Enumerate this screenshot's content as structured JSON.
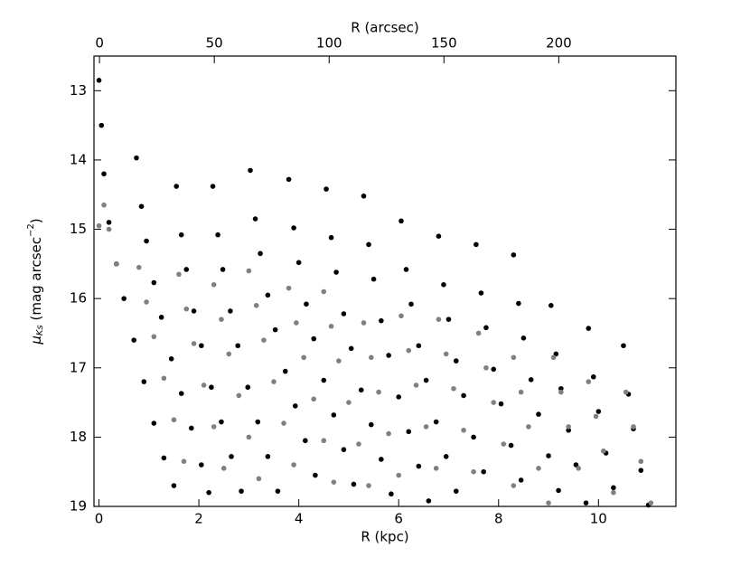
{
  "chart_data": {
    "type": "scatter",
    "xlabel": "R (kpc)",
    "x2label": "R (arcsec)",
    "ylabel": [
      "μ",
      "Ks",
      " (mag arcsec",
      "−2",
      ")"
    ],
    "xlim": [
      -0.1,
      11.55
    ],
    "xticks": [
      0,
      2,
      4,
      6,
      8,
      10
    ],
    "x2lim": [
      -2.4,
      251
    ],
    "x2ticks": [
      0,
      50,
      100,
      150,
      200
    ],
    "ylim": [
      19,
      12.5
    ],
    "yticks": [
      13,
      14,
      15,
      16,
      17,
      18,
      19
    ],
    "series": [
      {
        "color": "#000000",
        "x": [
          0,
          0.05,
          0.1,
          0.2,
          0.35,
          0.5,
          0.7,
          0.9,
          1.1,
          1.3,
          1.5,
          0.75,
          0.85,
          0.95,
          1.1,
          1.25,
          1.45,
          1.65,
          1.85,
          2.05,
          2.2,
          1.55,
          1.65,
          1.75,
          1.9,
          2.05,
          2.25,
          2.45,
          2.65,
          2.85,
          2.28,
          2.38,
          2.48,
          2.63,
          2.78,
          2.98,
          3.18,
          3.38,
          3.58,
          3.03,
          3.13,
          3.23,
          3.38,
          3.53,
          3.73,
          3.93,
          4.13,
          4.33,
          3.8,
          3.9,
          4.0,
          4.15,
          4.3,
          4.5,
          4.7,
          4.9,
          5.1,
          4.55,
          4.65,
          4.75,
          4.9,
          5.05,
          5.25,
          5.45,
          5.65,
          5.85,
          5.3,
          5.4,
          5.5,
          5.65,
          5.8,
          6.0,
          6.2,
          6.4,
          6.6,
          6.05,
          6.15,
          6.25,
          6.4,
          6.55,
          6.75,
          6.95,
          7.15,
          6.8,
          6.9,
          7.0,
          7.15,
          7.3,
          7.5,
          7.7,
          7.55,
          7.65,
          7.75,
          7.9,
          8.05,
          8.25,
          8.45,
          8.3,
          8.4,
          8.5,
          8.65,
          8.8,
          9.0,
          9.2,
          9.05,
          9.15,
          9.25,
          9.4,
          9.55,
          9.75,
          9.8,
          9.9,
          10.0,
          10.15,
          10.3,
          10.5,
          10.6,
          10.7,
          10.85,
          11.0
        ],
        "values": [
          12.85,
          13.5,
          14.2,
          14.9,
          15.5,
          16.0,
          16.6,
          17.2,
          17.8,
          18.3,
          18.7,
          13.97,
          14.67,
          15.17,
          15.77,
          16.27,
          16.87,
          17.37,
          17.87,
          18.4,
          18.8,
          14.38,
          15.08,
          15.58,
          16.18,
          16.68,
          17.28,
          17.78,
          18.28,
          18.78,
          14.38,
          15.08,
          15.58,
          16.18,
          16.68,
          17.28,
          17.78,
          18.28,
          18.78,
          14.15,
          14.85,
          15.35,
          15.95,
          16.45,
          17.05,
          17.55,
          18.05,
          18.55,
          14.28,
          14.98,
          15.48,
          16.08,
          16.58,
          17.18,
          17.68,
          18.18,
          18.68,
          14.42,
          15.12,
          15.62,
          16.22,
          16.72,
          17.32,
          17.82,
          18.32,
          18.82,
          14.52,
          15.22,
          15.72,
          16.32,
          16.82,
          17.42,
          17.92,
          18.42,
          18.92,
          14.88,
          15.58,
          16.08,
          16.68,
          17.18,
          17.78,
          18.28,
          18.78,
          15.1,
          15.8,
          16.3,
          16.9,
          17.4,
          18.0,
          18.5,
          15.22,
          15.92,
          16.42,
          17.02,
          17.52,
          18.12,
          18.62,
          15.37,
          16.07,
          16.57,
          17.17,
          17.67,
          18.27,
          18.77,
          16.1,
          16.8,
          17.3,
          17.9,
          18.4,
          18.95,
          16.43,
          17.13,
          17.63,
          18.23,
          18.73,
          16.68,
          17.38,
          17.88,
          18.48,
          18.98
        ]
      },
      {
        "color": "#808080",
        "x": [
          0,
          0.1,
          0.2,
          0.35,
          0.8,
          0.95,
          1.1,
          1.3,
          1.5,
          1.7,
          1.6,
          1.75,
          1.9,
          2.1,
          2.3,
          2.5,
          2.3,
          2.45,
          2.6,
          2.8,
          3.0,
          3.2,
          3.0,
          3.15,
          3.3,
          3.5,
          3.7,
          3.9,
          3.8,
          3.95,
          4.1,
          4.3,
          4.5,
          4.7,
          4.5,
          4.65,
          4.8,
          5.0,
          5.2,
          5.4,
          5.3,
          5.45,
          5.6,
          5.8,
          6.0,
          6.05,
          6.2,
          6.35,
          6.55,
          6.75,
          6.8,
          6.95,
          7.1,
          7.3,
          7.5,
          7.6,
          7.75,
          7.9,
          8.1,
          8.3,
          8.3,
          8.45,
          8.6,
          8.8,
          9.0,
          9.1,
          9.25,
          9.4,
          9.6,
          9.8,
          9.95,
          10.1,
          10.3,
          10.55,
          10.7,
          10.85,
          11.05
        ],
        "values": [
          14.95,
          14.65,
          15.0,
          15.5,
          15.55,
          16.05,
          16.55,
          17.15,
          17.75,
          18.35,
          15.65,
          16.15,
          16.65,
          17.25,
          17.85,
          18.45,
          15.8,
          16.3,
          16.8,
          17.4,
          18.0,
          18.6,
          15.6,
          16.1,
          16.6,
          17.2,
          17.8,
          18.4,
          15.85,
          16.35,
          16.85,
          17.45,
          18.05,
          18.65,
          15.9,
          16.4,
          16.9,
          17.5,
          18.1,
          18.7,
          16.35,
          16.85,
          17.35,
          17.95,
          18.55,
          16.25,
          16.75,
          17.25,
          17.85,
          18.45,
          16.3,
          16.8,
          17.3,
          17.9,
          18.5,
          16.5,
          17.0,
          17.5,
          18.1,
          18.7,
          16.85,
          17.35,
          17.85,
          18.45,
          18.95,
          16.85,
          17.35,
          17.85,
          18.45,
          17.2,
          17.7,
          18.2,
          18.8,
          17.35,
          17.85,
          18.35,
          18.95
        ]
      }
    ]
  }
}
